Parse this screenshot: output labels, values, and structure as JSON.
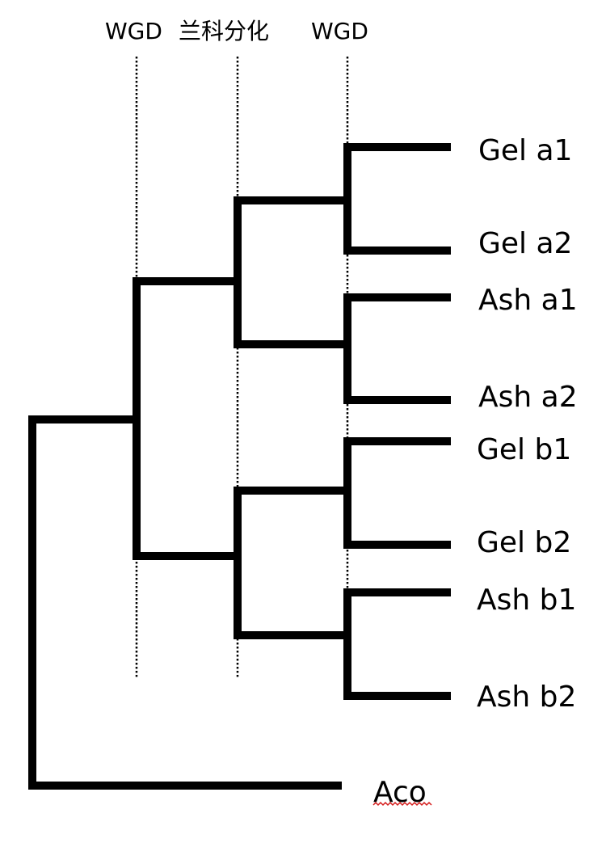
{
  "events": [
    {
      "id": "wgd-1",
      "label": "WGD"
    },
    {
      "id": "orchidaceae-divergence",
      "label": "兰科分化"
    },
    {
      "id": "wgd-2",
      "label": "WGD"
    }
  ],
  "leaves": [
    {
      "id": "gel-a1",
      "label": "Gel a1"
    },
    {
      "id": "gel-a2",
      "label": "Gel a2"
    },
    {
      "id": "ash-a1",
      "label": "Ash a1"
    },
    {
      "id": "ash-a2",
      "label": "Ash a2"
    },
    {
      "id": "gel-b1",
      "label": "Gel b1"
    },
    {
      "id": "gel-b2",
      "label": "Gel b2"
    },
    {
      "id": "ash-b1",
      "label": "Ash b1"
    },
    {
      "id": "ash-b2",
      "label": "Ash b2"
    },
    {
      "id": "aco",
      "label": "Aco"
    }
  ],
  "colors": {
    "branch": "#000000",
    "spellcheck_underline": "#d62020"
  }
}
